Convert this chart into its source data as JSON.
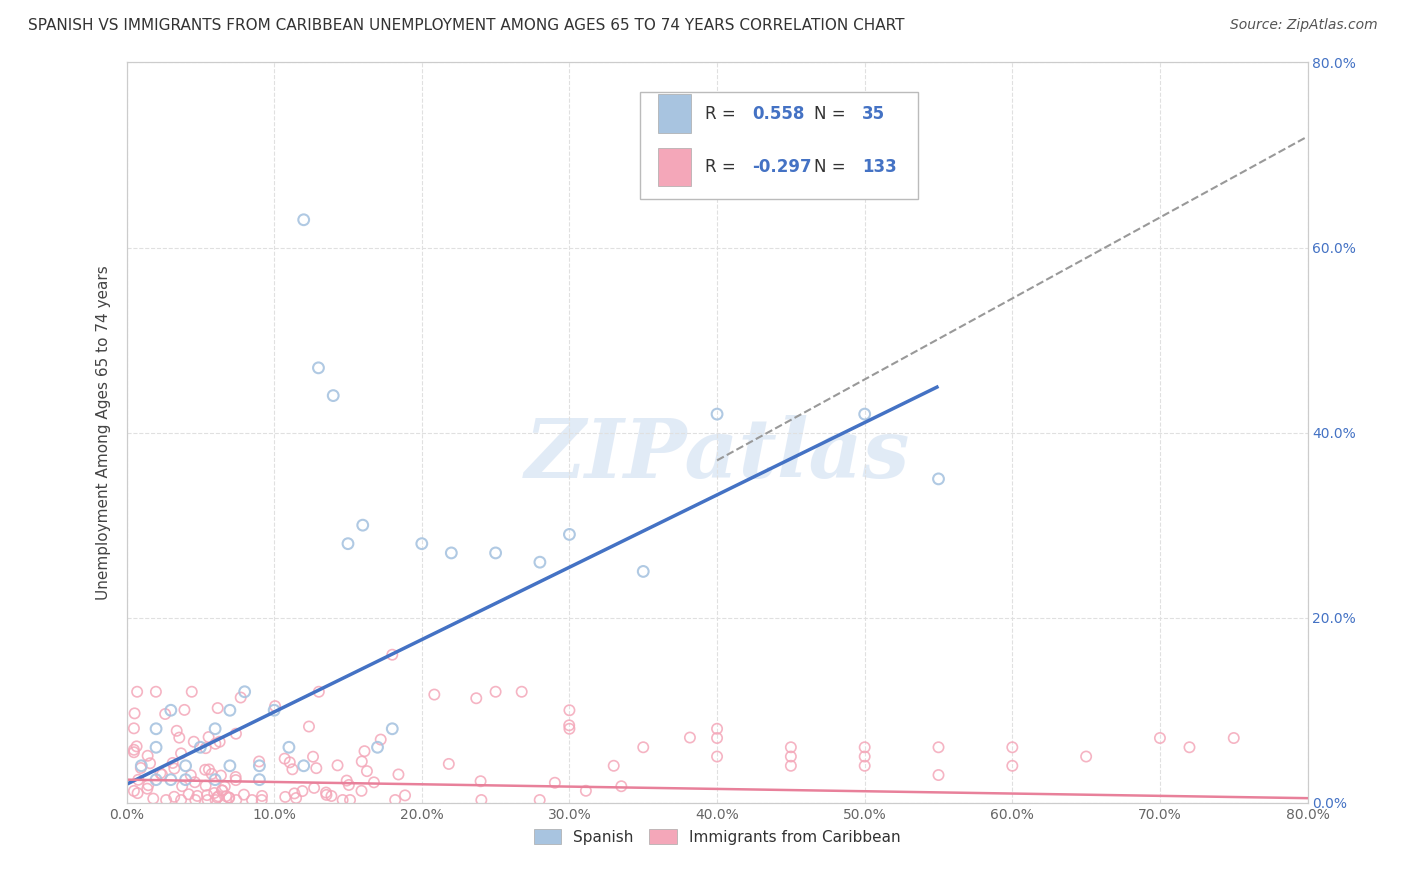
{
  "title": "SPANISH VS IMMIGRANTS FROM CARIBBEAN UNEMPLOYMENT AMONG AGES 65 TO 74 YEARS CORRELATION CHART",
  "source": "Source: ZipAtlas.com",
  "ylabel": "Unemployment Among Ages 65 to 74 years",
  "xlim": [
    0.0,
    0.8
  ],
  "ylim": [
    0.0,
    0.8
  ],
  "xticks": [
    0.0,
    0.1,
    0.2,
    0.3,
    0.4,
    0.5,
    0.6,
    0.7,
    0.8
  ],
  "xticklabels": [
    "0.0%",
    "10.0%",
    "20.0%",
    "30.0%",
    "40.0%",
    "50.0%",
    "60.0%",
    "70.0%",
    "80.0%"
  ],
  "yticks_right": [
    0.0,
    0.2,
    0.4,
    0.6,
    0.8
  ],
  "yticklabels_right": [
    "0.0%",
    "20.0%",
    "40.0%",
    "60.0%",
    "80.0%"
  ],
  "spanish_color": "#a8c4e0",
  "caribbean_color": "#f4a7b9",
  "spanish_line_color": "#4472c4",
  "caribbean_line_color": "#e8809a",
  "R_spanish": 0.558,
  "N_spanish": 35,
  "R_caribbean": -0.297,
  "N_caribbean": 133,
  "blue_line_x": [
    0.0,
    0.55
  ],
  "blue_line_y": [
    0.02,
    0.45
  ],
  "dash_line_x": [
    0.4,
    0.8
  ],
  "dash_line_y": [
    0.37,
    0.72
  ],
  "pink_line_x": [
    0.0,
    0.8
  ],
  "pink_line_y": [
    0.025,
    0.005
  ],
  "watermark": "ZIPatlas",
  "background_color": "#ffffff",
  "grid_color": "#e0e0e0",
  "right_axis_color": "#4472c4"
}
